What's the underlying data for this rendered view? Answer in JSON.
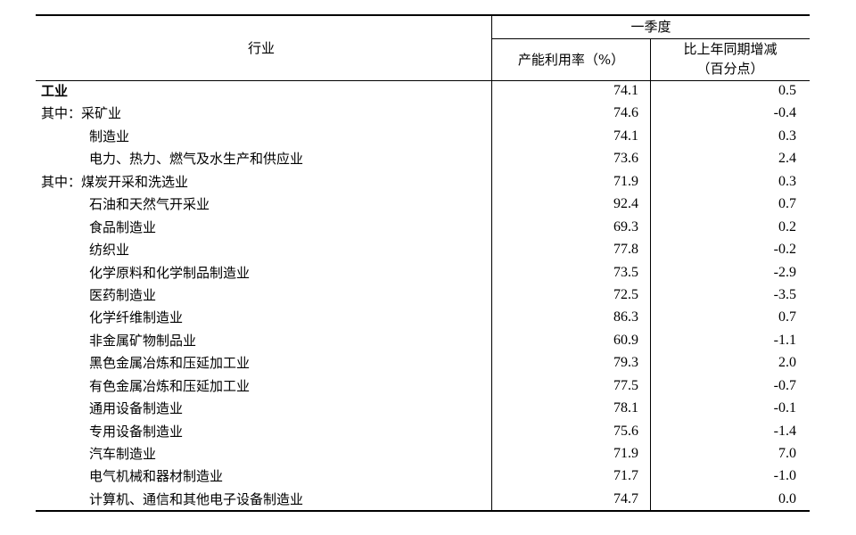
{
  "header": {
    "industry": "行业",
    "period": "一季度",
    "col1": "产能利用率（%）",
    "col2_line1": "比上年同期增减",
    "col2_line2": "（百分点）"
  },
  "rows": [
    {
      "prefix": "",
      "name": "工业",
      "rate": "74.1",
      "change": "0.5",
      "bold": true,
      "indent": 0
    },
    {
      "prefix": "其中：",
      "name": "采矿业",
      "rate": "74.6",
      "change": "-0.4",
      "indent": 0
    },
    {
      "prefix": "",
      "name": "制造业",
      "rate": "74.1",
      "change": "0.3",
      "indent": 1
    },
    {
      "prefix": "",
      "name": "电力、热力、燃气及水生产和供应业",
      "rate": "73.6",
      "change": "2.4",
      "indent": 1
    },
    {
      "prefix": "其中：",
      "name": "煤炭开采和洗选业",
      "rate": "71.9",
      "change": "0.3",
      "indent": 0
    },
    {
      "prefix": "",
      "name": "石油和天然气开采业",
      "rate": "92.4",
      "change": "0.7",
      "indent": 1
    },
    {
      "prefix": "",
      "name": "食品制造业",
      "rate": "69.3",
      "change": "0.2",
      "indent": 1
    },
    {
      "prefix": "",
      "name": "纺织业",
      "rate": "77.8",
      "change": "-0.2",
      "indent": 1
    },
    {
      "prefix": "",
      "name": "化学原料和化学制品制造业",
      "rate": "73.5",
      "change": "-2.9",
      "indent": 1
    },
    {
      "prefix": "",
      "name": "医药制造业",
      "rate": "72.5",
      "change": "-3.5",
      "indent": 1
    },
    {
      "prefix": "",
      "name": "化学纤维制造业",
      "rate": "86.3",
      "change": "0.7",
      "indent": 1
    },
    {
      "prefix": "",
      "name": "非金属矿物制品业",
      "rate": "60.9",
      "change": "-1.1",
      "indent": 1
    },
    {
      "prefix": "",
      "name": "黑色金属冶炼和压延加工业",
      "rate": "79.3",
      "change": "2.0",
      "indent": 1
    },
    {
      "prefix": "",
      "name": "有色金属冶炼和压延加工业",
      "rate": "77.5",
      "change": "-0.7",
      "indent": 1
    },
    {
      "prefix": "",
      "name": "通用设备制造业",
      "rate": "78.1",
      "change": "-0.1",
      "indent": 1
    },
    {
      "prefix": "",
      "name": "专用设备制造业",
      "rate": "75.6",
      "change": "-1.4",
      "indent": 1
    },
    {
      "prefix": "",
      "name": "汽车制造业",
      "rate": "71.9",
      "change": "7.0",
      "indent": 1
    },
    {
      "prefix": "",
      "name": "电气机械和器材制造业",
      "rate": "71.7",
      "change": "-1.0",
      "indent": 1
    },
    {
      "prefix": "",
      "name": "计算机、通信和其他电子设备制造业",
      "rate": "74.7",
      "change": "0.0",
      "indent": 1
    }
  ]
}
